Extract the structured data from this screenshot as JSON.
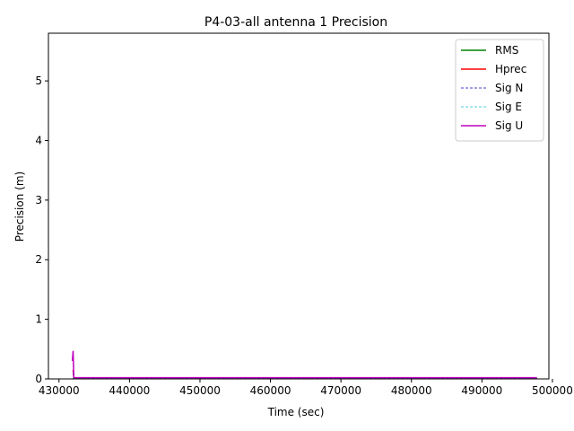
{
  "chart_data": {
    "type": "line",
    "title": "P4-03-all antenna 1 Precision",
    "xlabel": "Time (sec)",
    "ylabel": "Precision (m)",
    "xlim": [
      428500,
      499500
    ],
    "ylim": [
      0,
      5.8
    ],
    "xticks": [
      430000,
      440000,
      450000,
      460000,
      470000,
      480000,
      490000,
      500000
    ],
    "xtick_labels": [
      "430000",
      "440000",
      "450000",
      "460000",
      "470000",
      "480000",
      "490000",
      "500000"
    ],
    "yticks": [
      0,
      1,
      2,
      3,
      4,
      5
    ],
    "ytick_labels": [
      "0",
      "1",
      "2",
      "3",
      "4",
      "5"
    ],
    "grid": false,
    "legend_position": "top-right",
    "series": [
      {
        "name": "RMS",
        "color": "#008000",
        "style": "solid",
        "x": [
          432000,
          432100,
          432200,
          497800
        ],
        "y": [
          0.0,
          0.02,
          0.01,
          0.01
        ]
      },
      {
        "name": "Hprec",
        "color": "#ff0000",
        "style": "solid",
        "x": [
          432000,
          432100,
          432200,
          497800
        ],
        "y": [
          0.15,
          0.02,
          0.01,
          0.01
        ]
      },
      {
        "name": "Sig N",
        "color": "#0000bf",
        "style": "dashed",
        "x": [
          432000,
          432100,
          432200,
          497800
        ],
        "y": [
          0.1,
          0.01,
          0.01,
          0.01
        ]
      },
      {
        "name": "Sig E",
        "color": "#17becf",
        "style": "dashed",
        "x": [
          432000,
          432100,
          432200,
          497800
        ],
        "y": [
          0.12,
          0.01,
          0.01,
          0.01
        ]
      },
      {
        "name": "Sig U",
        "color": "#bf00bf",
        "style": "solid",
        "x": [
          431900,
          432000,
          432100,
          432200,
          497800
        ],
        "y": [
          0.3,
          0.47,
          0.03,
          0.02,
          0.02
        ]
      }
    ]
  }
}
